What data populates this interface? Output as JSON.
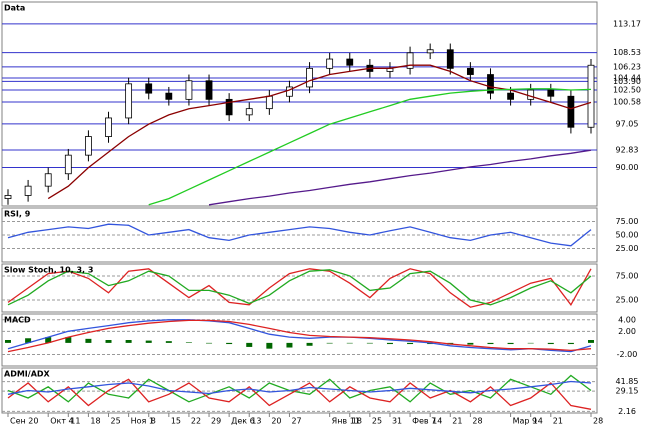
{
  "chart_data": [
    {
      "type": "candlestick",
      "title": "Data",
      "open": [
        85,
        85.5,
        87,
        89,
        92,
        95,
        98,
        103.5,
        102,
        101,
        104,
        101,
        98.5,
        99.5,
        101.5,
        103,
        106,
        107.5,
        106.5,
        105.5,
        106,
        108.5,
        109,
        106,
        105,
        102,
        101,
        102.5,
        101.5,
        96.5
      ],
      "high": [
        86.5,
        88,
        90,
        93,
        96,
        99,
        104.5,
        104.5,
        103,
        105,
        105,
        102,
        100.5,
        102.5,
        104,
        107,
        108.5,
        108.5,
        107.5,
        107,
        109.5,
        110,
        110,
        107,
        106,
        103,
        103.5,
        103.5,
        102.5,
        107.5
      ],
      "low": [
        84,
        84.5,
        86,
        88,
        91,
        94,
        97,
        101,
        100,
        100,
        100,
        97.5,
        97.5,
        98.5,
        100.5,
        102,
        105,
        105.5,
        104.5,
        104.5,
        105,
        107.5,
        105,
        104,
        101,
        100,
        100,
        100.5,
        95.5,
        95.5
      ],
      "close": [
        85.5,
        87,
        89,
        92,
        95,
        98,
        103.5,
        102,
        101,
        104,
        101,
        98.5,
        99.5,
        101.5,
        103,
        106,
        107.5,
        106.5,
        105.5,
        106,
        108.5,
        109,
        106,
        105,
        102,
        101,
        102.5,
        101.5,
        96.5,
        106.5
      ],
      "color": "#000000",
      "series": [
        {
          "color": "#8b0000",
          "values": [
            null,
            null,
            85,
            87,
            90,
            92.5,
            95,
            97,
            98.5,
            99.5,
            100,
            100.5,
            101,
            101.5,
            102.5,
            104,
            105,
            105.5,
            106,
            106,
            106.5,
            106.5,
            105.5,
            104,
            103,
            102.5,
            101.5,
            100.5,
            99.5,
            100.5
          ]
        },
        {
          "color": "#22cc22",
          "values": [
            null,
            null,
            null,
            null,
            null,
            null,
            null,
            84,
            85,
            86.5,
            88,
            89.5,
            91,
            92.5,
            94,
            95.5,
            97,
            98,
            99,
            100,
            101,
            101.5,
            102,
            102.3,
            102.5,
            102.6,
            102.7,
            102.7,
            102.5,
            102.6
          ]
        },
        {
          "color": "#551a8b",
          "values": [
            null,
            null,
            null,
            null,
            null,
            null,
            null,
            null,
            null,
            null,
            84,
            84.5,
            85,
            85.4,
            85.9,
            86.3,
            86.8,
            87.3,
            87.7,
            88.2,
            88.7,
            89.1,
            89.6,
            90.1,
            90.5,
            91,
            91.4,
            91.9,
            92.3,
            92.8
          ]
        }
      ],
      "ylim": [
        83.8,
        116.7
      ],
      "yticks": [
        113.17,
        108.53,
        106.23,
        104.44,
        {
          "value": 103.9,
          "label": "103.90"
        },
        {
          "value": 102.5,
          "label": "102.50"
        },
        100.58,
        97.05,
        92.83,
        {
          "value": 90.0,
          "label": "90.00"
        }
      ],
      "grid_color": "#3333cc"
    },
    {
      "type": "line",
      "title": "RSI, 9",
      "series": [
        {
          "color": "#3355dd",
          "values": [
            45,
            55,
            60,
            65,
            62,
            70,
            68,
            50,
            55,
            60,
            45,
            40,
            50,
            55,
            60,
            65,
            62,
            55,
            50,
            58,
            65,
            55,
            45,
            40,
            50,
            55,
            45,
            35,
            30,
            60
          ]
        }
      ],
      "ylim": [
        0,
        100
      ],
      "yticks": [
        {
          "value": 75,
          "label": "75.00"
        },
        {
          "value": 50,
          "label": "50.00"
        },
        {
          "value": 25,
          "label": "25.00"
        }
      ],
      "grid_color": "#999999"
    },
    {
      "type": "line",
      "title": "Slow Stoch, 10, 3, 3",
      "series": [
        {
          "color": "#dd2222",
          "values": [
            20,
            50,
            80,
            85,
            70,
            40,
            85,
            90,
            60,
            30,
            55,
            20,
            15,
            50,
            80,
            90,
            85,
            60,
            30,
            70,
            90,
            80,
            40,
            10,
            20,
            40,
            60,
            70,
            15,
            90
          ]
        },
        {
          "color": "#22aa22",
          "values": [
            15,
            35,
            65,
            85,
            80,
            55,
            65,
            85,
            75,
            45,
            45,
            35,
            18,
            35,
            65,
            85,
            88,
            75,
            45,
            50,
            80,
            85,
            60,
            25,
            15,
            30,
            50,
            65,
            40,
            75
          ]
        }
      ],
      "ylim": [
        0,
        100
      ],
      "yticks": [
        {
          "value": 75,
          "label": "75.00"
        },
        {
          "value": 25,
          "label": "25.00"
        }
      ],
      "grid_color": "#999999"
    },
    {
      "type": "line",
      "title": "MACD",
      "series": [
        {
          "style": "bar",
          "color": "#006600",
          "values": [
            0.5,
            0.8,
            1,
            1,
            0.7,
            0.5,
            0.5,
            0.4,
            0.3,
            0.1,
            -0.1,
            -0.2,
            -0.7,
            -1,
            -0.8,
            -0.5,
            -0.1,
            0,
            -0.1,
            -0.2,
            -0.2,
            -0.2,
            -0.3,
            -0.3,
            -0.2,
            -0.2,
            0,
            -0.2,
            -0.2,
            0.5
          ]
        },
        {
          "color": "#3355dd",
          "values": [
            -1,
            0,
            1,
            2,
            2.5,
            3,
            3.5,
            3.8,
            4,
            4,
            3.8,
            3.5,
            2.5,
            1.5,
            1,
            0.8,
            1,
            1,
            0.8,
            0.5,
            0.3,
            0,
            -0.5,
            -0.8,
            -1,
            -1.2,
            -1,
            -1.3,
            -1.5,
            -0.5
          ]
        },
        {
          "color": "#dd2222",
          "values": [
            -1.5,
            -0.8,
            0,
            1,
            1.8,
            2.5,
            3,
            3.4,
            3.7,
            3.9,
            3.9,
            3.7,
            3.2,
            2.5,
            1.8,
            1.3,
            1.1,
            1,
            0.9,
            0.7,
            0.5,
            0.2,
            -0.2,
            -0.5,
            -0.8,
            -1,
            -1,
            -1.1,
            -1.3,
            -1
          ]
        }
      ],
      "ylim": [
        -4,
        5
      ],
      "yticks": [
        {
          "value": 4,
          "label": "4.00"
        },
        {
          "value": 2,
          "label": "2.00"
        },
        {
          "value": -2,
          "label": "-2.00"
        }
      ],
      "grid_color": "#999999"
    },
    {
      "type": "line",
      "title": "ADMI/ADX",
      "series": [
        {
          "color": "#22aa22",
          "values": [
            30,
            20,
            35,
            15,
            40,
            25,
            20,
            45,
            30,
            15,
            25,
            35,
            20,
            40,
            30,
            25,
            45,
            20,
            30,
            35,
            15,
            40,
            25,
            30,
            20,
            45,
            35,
            25,
            50,
            30
          ]
        },
        {
          "color": "#dd2222",
          "values": [
            20,
            40,
            15,
            35,
            10,
            30,
            45,
            15,
            25,
            40,
            20,
            15,
            35,
            10,
            25,
            40,
            15,
            35,
            20,
            15,
            40,
            20,
            30,
            15,
            35,
            10,
            20,
            40,
            10,
            5
          ]
        },
        {
          "color": "#3355dd",
          "values": [
            25,
            30,
            28,
            32,
            35,
            38,
            40,
            36,
            30,
            28,
            26,
            30,
            32,
            28,
            30,
            34,
            32,
            30,
            28,
            30,
            33,
            31,
            29,
            27,
            30,
            32,
            35,
            38,
            42,
            40
          ]
        }
      ],
      "ylim": [
        0,
        60
      ],
      "yticks": [
        29.15,
        41.85,
        2.16
      ],
      "grid_color": "#999999",
      "categories": [
        "Сен 20",
        null,
        "Окт 4",
        "11",
        "18",
        "25",
        "Ноя 1",
        "8",
        "15",
        "22",
        "29",
        "Дек 6",
        "13",
        "20",
        "27",
        null,
        "Янв 11",
        "18",
        "25",
        "31",
        "Фев 7",
        "14",
        "21",
        "28",
        null,
        "Мар 9",
        "14",
        "21",
        null,
        "28"
      ]
    }
  ]
}
